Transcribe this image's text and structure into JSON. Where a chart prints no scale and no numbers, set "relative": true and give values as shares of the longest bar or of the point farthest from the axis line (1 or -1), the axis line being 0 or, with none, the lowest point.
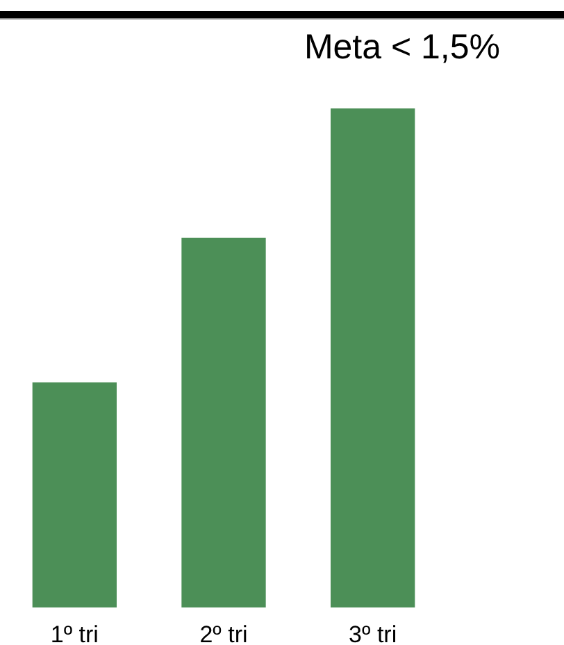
{
  "chart_data": {
    "type": "bar",
    "categories": [
      "1º tri",
      "2º tri",
      "3º tri"
    ],
    "values": [
      0.45,
      0.74,
      1
    ],
    "color": "#4c8f57",
    "relative": true,
    "annotations": [
      "Meta < 1,5%"
    ]
  }
}
